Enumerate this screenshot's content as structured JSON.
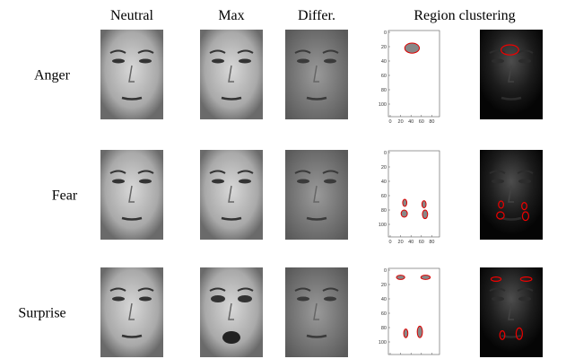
{
  "figure": {
    "headers": [
      "Neutral",
      "Max",
      "Differ.",
      "Region clustering"
    ],
    "rows": [
      {
        "label": "Anger"
      },
      {
        "label": "Fear"
      },
      {
        "label": "Surprise"
      }
    ],
    "plot_axes": {
      "xticks": [
        0,
        20,
        40,
        60,
        80
      ],
      "yticks": [
        0,
        20,
        40,
        60,
        80,
        100
      ]
    }
  }
}
